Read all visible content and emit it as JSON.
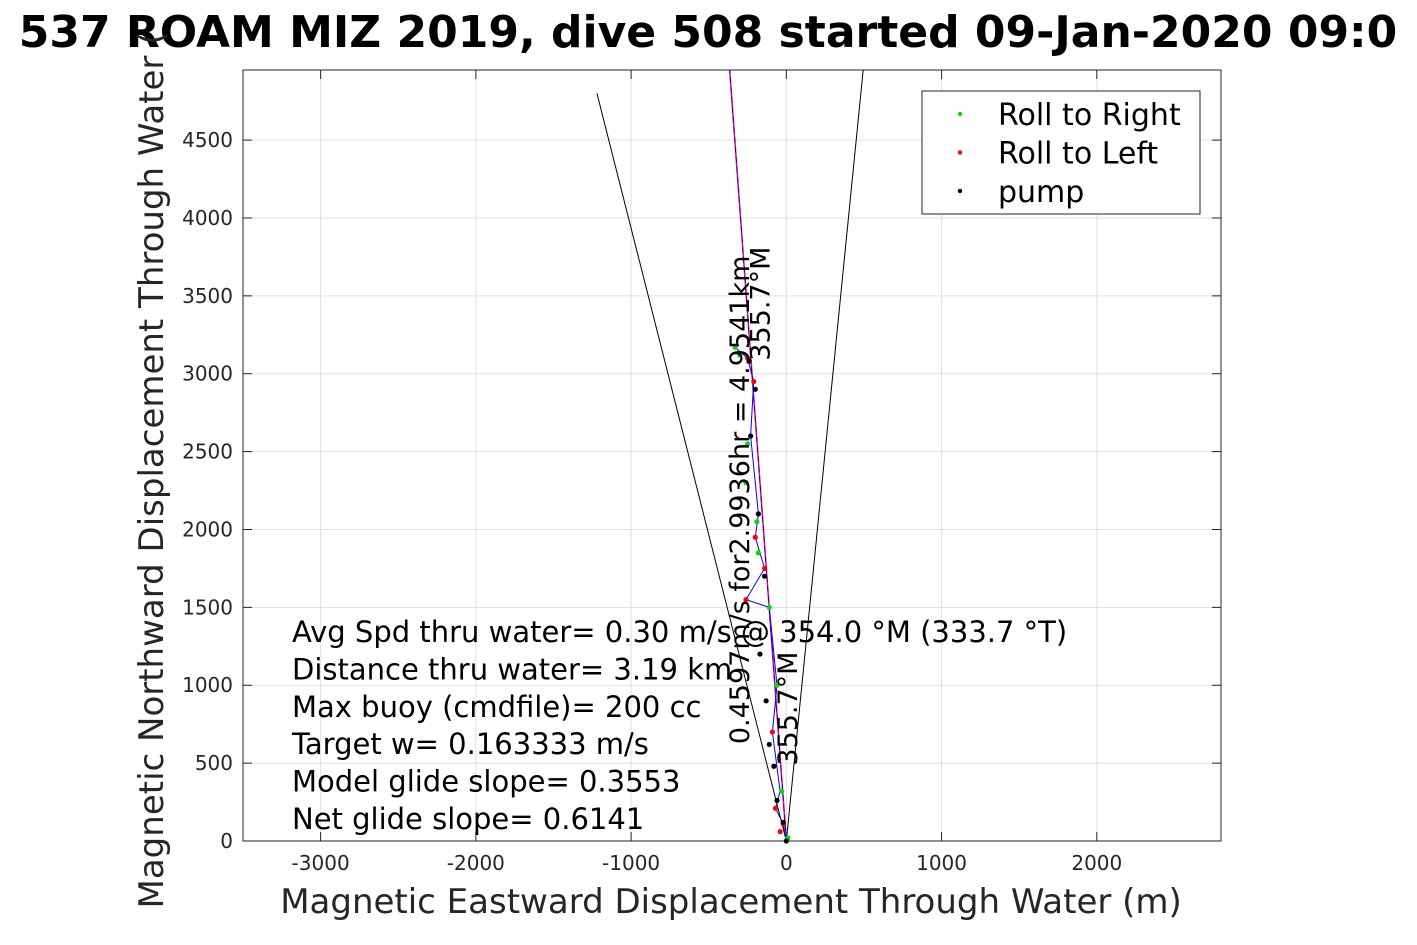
{
  "chart_data": {
    "type": "scatter",
    "title": "537 ROAM MIZ 2019, dive 508 started 09-Jan-2020 09:0",
    "xlabel": "Magnetic Eastward Displacement Through Water (m)",
    "ylabel": "Magnetic Northward Displacement Through Water (",
    "xlim": [
      -3500,
      2800
    ],
    "ylim": [
      0,
      4950
    ],
    "xticks": [
      -3000,
      -2000,
      -1000,
      0,
      1000,
      2000
    ],
    "yticks": [
      0,
      500,
      1000,
      1500,
      2000,
      2500,
      3000,
      3500,
      4000,
      4500
    ],
    "grid": true,
    "legend_position": "top-right",
    "colors": {
      "roll_right": "#00dd00",
      "roll_left": "#ff0000",
      "pump": "#000000",
      "track": "#0000ff",
      "heading": "#cc00cc",
      "bounds": "#000000",
      "grid": "#e0e0e0"
    },
    "series": [
      {
        "name": "Roll to Right",
        "color": "#00dd00",
        "points": [
          [
            10,
            20
          ],
          [
            -30,
            320
          ],
          [
            -60,
            1000
          ],
          [
            -110,
            1500
          ],
          [
            -180,
            1850
          ],
          [
            -190,
            2050
          ],
          [
            -260,
            2300
          ],
          [
            -250,
            2550
          ],
          [
            -300,
            3120
          ],
          [
            -330,
            3170
          ]
        ]
      },
      {
        "name": "Roll to Left",
        "color": "#ff0000",
        "points": [
          [
            -70,
            210
          ],
          [
            -90,
            700
          ],
          [
            -260,
            1550
          ],
          [
            -140,
            1750
          ],
          [
            -200,
            1950
          ],
          [
            -210,
            2950
          ],
          [
            -250,
            3100
          ],
          [
            -20,
            110
          ],
          [
            -40,
            60
          ]
        ]
      },
      {
        "name": "pump",
        "color": "#000000",
        "points": [
          [
            0,
            0
          ],
          [
            -20,
            120
          ],
          [
            -60,
            260
          ],
          [
            -80,
            480
          ],
          [
            -110,
            620
          ],
          [
            -130,
            900
          ],
          [
            -170,
            1200
          ],
          [
            -140,
            1700
          ],
          [
            -180,
            2100
          ],
          [
            -230,
            2600
          ],
          [
            -200,
            2900
          ],
          [
            -240,
            3080
          ]
        ]
      }
    ],
    "track": [
      [
        0,
        0
      ],
      [
        -20,
        110
      ],
      [
        -70,
        210
      ],
      [
        -40,
        320
      ],
      [
        -90,
        700
      ],
      [
        -60,
        1000
      ],
      [
        -110,
        1500
      ],
      [
        -260,
        1550
      ],
      [
        -140,
        1750
      ],
      [
        -200,
        1950
      ],
      [
        -180,
        2100
      ],
      [
        -230,
        2600
      ],
      [
        -210,
        2950
      ],
      [
        -250,
        3100
      ],
      [
        -330,
        3170
      ]
    ],
    "heading_line": [
      [
        0,
        0
      ],
      [
        -365,
        4950
      ]
    ],
    "bound_lines": [
      [
        [
          0,
          0
        ],
        [
          -1220,
          4800
        ]
      ],
      [
        [
          0,
          0
        ],
        [
          495,
          4950
        ]
      ]
    ],
    "legend": [
      "Roll to Right",
      "Roll to Left",
      "pump"
    ],
    "info_lines": [
      "Avg Spd thru water=  0.30 m/s @ 354.0 °M (333.7 °T)",
      "Distance thru water=  3.19 km",
      "Max buoy (cmdfile)= 200 cc",
      "Target w= 0.163333 m/s",
      "Model glide slope= 0.3553",
      "Net glide slope= 0.6141"
    ],
    "annotations": [
      {
        "text": "355.7°M",
        "x": -110,
        "y": 3450
      },
      {
        "text": "0.4597m/s for2.9936hr = 4.9541km",
        "x": -240,
        "y": 2190
      },
      {
        "text": "355.7°M",
        "x": 70,
        "y": 850
      }
    ]
  }
}
